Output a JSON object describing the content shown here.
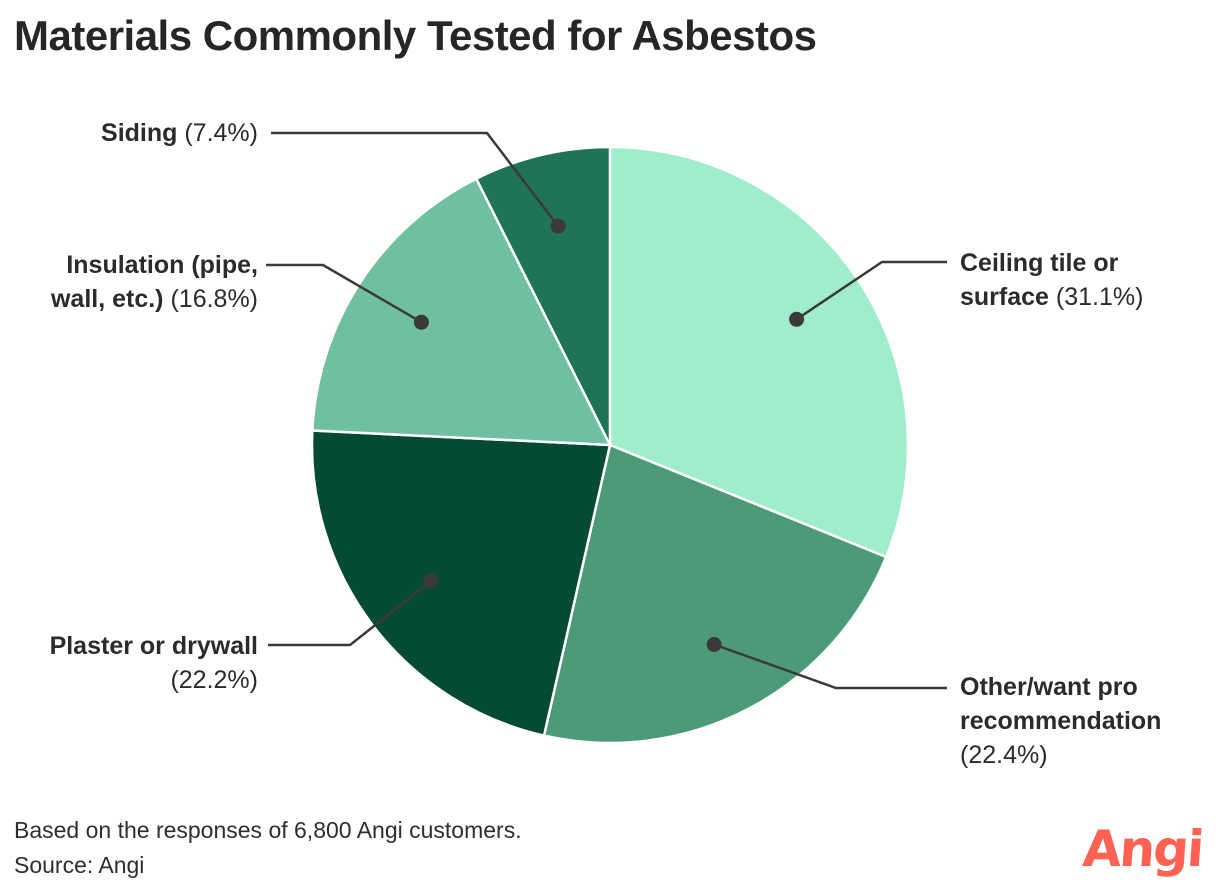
{
  "title": "Materials Commonly Tested for Asbestos",
  "chart_data": {
    "type": "pie",
    "categories": [
      "Ceiling tile or surface",
      "Other/want pro recommendation",
      "Plaster or drywall",
      "Insulation (pipe, wall, etc.)",
      "Siding"
    ],
    "values": [
      31.1,
      22.4,
      22.2,
      16.8,
      7.4
    ],
    "value_unit": "%",
    "colors": [
      "#9FEDCB",
      "#4D9A79",
      "#044A34",
      "#6FC09F",
      "#1F7357"
    ],
    "start_angle": "12 o'clock",
    "direction": "clockwise",
    "slice_stroke": "#FFFFFF",
    "leader_color": "#3A3A3A",
    "title": "Materials Commonly Tested for Asbestos",
    "legend": "none (callout labels with leader lines)"
  },
  "labels": {
    "ceiling": {
      "bold1": "Ceiling tile or",
      "bold2": "surface",
      "pct": " (31.1%)"
    },
    "other": {
      "bold1": "Other/want pro",
      "bold2": "recommendation",
      "pct": "(22.4%)"
    },
    "plaster": {
      "bold1": "Plaster or drywall",
      "pct": "(22.2%)"
    },
    "insulation": {
      "bold1": "Insulation (pipe,",
      "bold2": "wall, etc.)",
      "pct": " (16.8%)"
    },
    "siding": {
      "bold1": "Siding",
      "pct": " (7.4%)"
    }
  },
  "footer": {
    "note": "Based on the responses of 6,800 Angi customers.",
    "source": "Source: Angi",
    "brand": "Angi",
    "brand_color": "#FF6153"
  }
}
